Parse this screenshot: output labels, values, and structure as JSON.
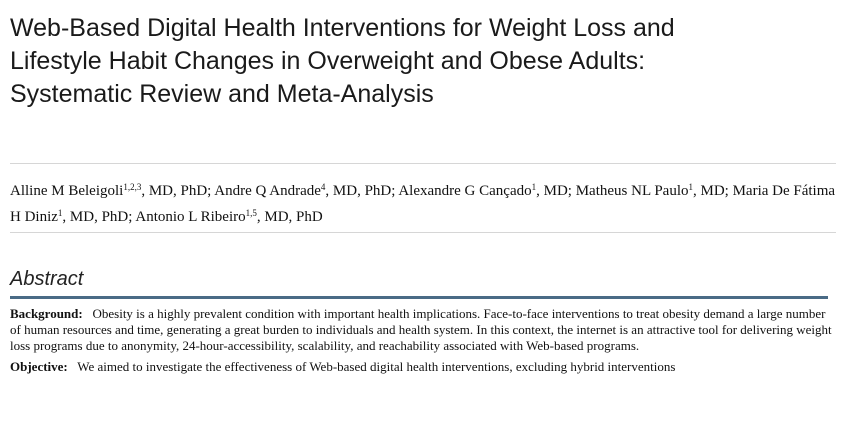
{
  "title_lines": [
    "Web-Based Digital Health Interventions for Weight Loss and",
    "Lifestyle Habit Changes in Overweight and Obese Adults:",
    "Systematic Review and Meta-Analysis"
  ],
  "authors": [
    {
      "name": "Alline M Beleigoli",
      "aff": "1,2,3",
      "suffix": ", MD, PhD; "
    },
    {
      "name": "Andre Q Andrade",
      "aff": "4",
      "suffix": ", MD, PhD; "
    },
    {
      "name": "Alexandre G Cançado",
      "aff": "1",
      "suffix": ", MD; "
    },
    {
      "name": "Matheus NL Paulo",
      "aff": "1",
      "suffix": ", MD; "
    },
    {
      "name": "Maria De Fátima H Diniz",
      "aff": "1",
      "suffix": ", MD, PhD; "
    },
    {
      "name": "Antonio L Ribeiro",
      "aff": "1,5",
      "suffix": ", MD, PhD"
    }
  ],
  "abstract": {
    "heading": "Abstract",
    "sections": [
      {
        "label": "Background:",
        "text": "Obesity is a highly prevalent condition with important health implications. Face-to-face interventions to treat obesity demand a large number of human resources and time, generating a great burden to individuals and health system. In this context, the internet is an attractive tool for delivering weight loss programs due to anonymity, 24-hour-accessibility, scalability, and reachability associated with Web-based programs."
      },
      {
        "label": "Objective:",
        "text": "We aimed to investigate the effectiveness of Web-based digital health interventions, excluding hybrid interventions"
      }
    ]
  }
}
